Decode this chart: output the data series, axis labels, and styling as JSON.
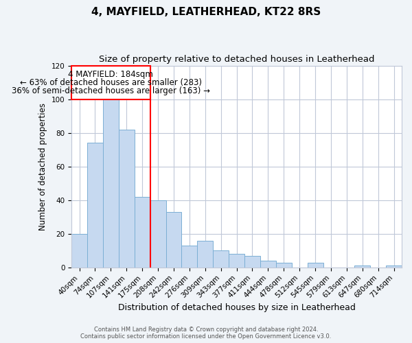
{
  "title": "4, MAYFIELD, LEATHERHEAD, KT22 8RS",
  "subtitle": "Size of property relative to detached houses in Leatherhead",
  "xlabel": "Distribution of detached houses by size in Leatherhead",
  "ylabel": "Number of detached properties",
  "footer_line1": "Contains HM Land Registry data © Crown copyright and database right 2024.",
  "footer_line2": "Contains public sector information licensed under the Open Government Licence v3.0.",
  "bin_labels": [
    "40sqm",
    "74sqm",
    "107sqm",
    "141sqm",
    "175sqm",
    "208sqm",
    "242sqm",
    "276sqm",
    "309sqm",
    "343sqm",
    "377sqm",
    "411sqm",
    "444sqm",
    "478sqm",
    "512sqm",
    "545sqm",
    "579sqm",
    "613sqm",
    "647sqm",
    "680sqm",
    "714sqm"
  ],
  "bar_values": [
    20,
    74,
    101,
    82,
    42,
    40,
    33,
    13,
    16,
    10,
    8,
    7,
    4,
    3,
    0,
    3,
    0,
    0,
    1,
    0,
    1
  ],
  "bar_color": "#c6d9f0",
  "bar_edge_color": "#7bafd4",
  "grid_color": "#c0c8d8",
  "annotation_line1": "4 MAYFIELD: 184sqm",
  "annotation_line2": "← 63% of detached houses are smaller (283)",
  "annotation_line3": "36% of semi-detached houses are larger (163) →",
  "red_line_x": 4.5,
  "ylim": [
    0,
    120
  ],
  "yticks": [
    0,
    20,
    40,
    60,
    80,
    100,
    120
  ],
  "background_color": "#f0f4f8",
  "plot_background": "#ffffff",
  "title_fontsize": 11,
  "subtitle_fontsize": 9.5,
  "xlabel_fontsize": 9,
  "ylabel_fontsize": 8.5,
  "tick_fontsize": 7.5,
  "annotation_fontsize": 8.5
}
